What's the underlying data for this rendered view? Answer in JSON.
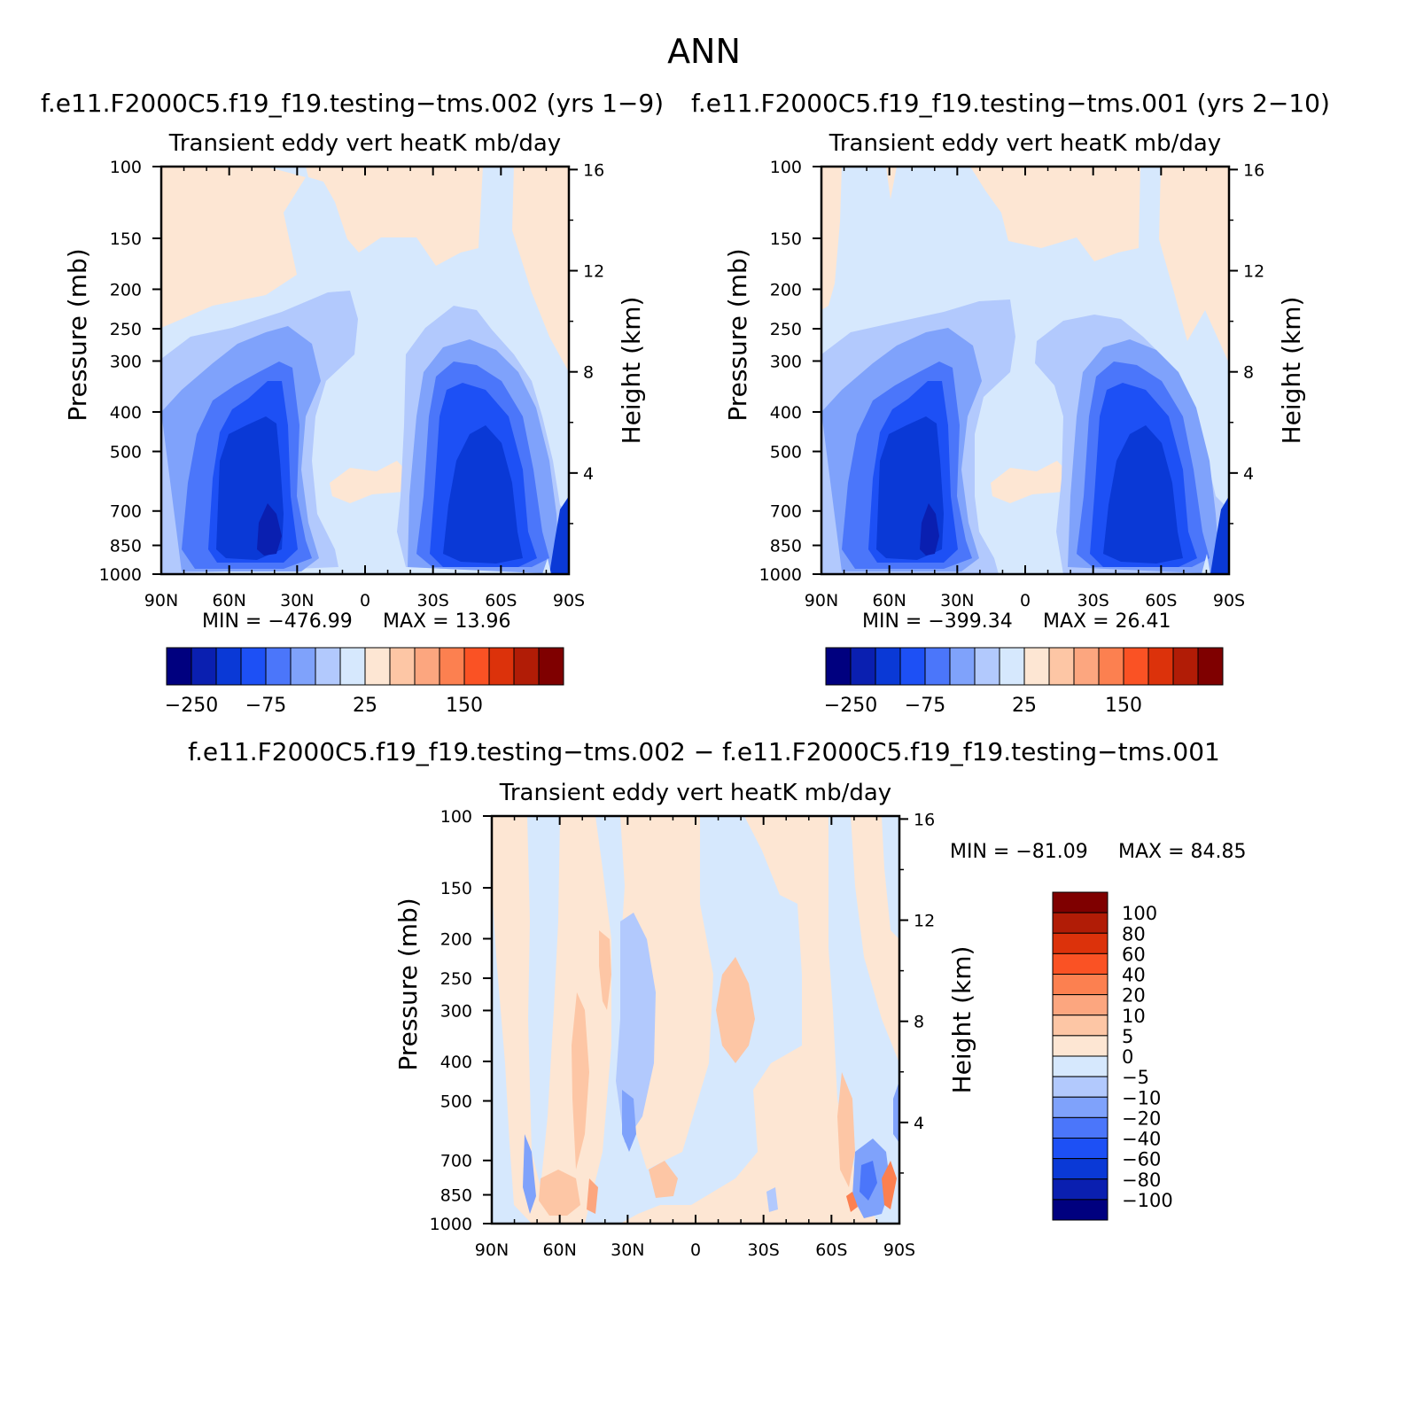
{
  "figure": {
    "title": "ANN"
  },
  "chart_data": [
    {
      "type": "heatmap",
      "panel": "test",
      "case_title": "f.e11.F2000C5.f19_f19.testing−tms.002 (yrs 1−9)",
      "title": "Transient eddy vert heatK mb/day",
      "ylabel": "Pressure (mb)",
      "y2label": "Height (km)",
      "x_ticks": [
        "90N",
        "60N",
        "30N",
        "0",
        "30S",
        "60S",
        "90S"
      ],
      "y_ticks": [
        "100",
        "150",
        "200",
        "250",
        "300",
        "400",
        "500",
        "700",
        "850",
        "1000"
      ],
      "y2_ticks": [
        "16",
        "12",
        "8",
        "4"
      ],
      "min_label": "MIN = −476.99",
      "max_label": "MAX =   13.96",
      "min": -476.99,
      "max": 13.96,
      "colorbar_labels": [
        "−250",
        "−75",
        "25",
        "150"
      ],
      "colorbar_colors": [
        "#00007f",
        "#0a1fb0",
        "#0a39d6",
        "#1d50f5",
        "#4b76fa",
        "#7fa2fb",
        "#b2c9fd",
        "#d6e8fd",
        "#fde6d3",
        "#fdc6a5",
        "#fca67f",
        "#fc8050",
        "#fa5224",
        "#dc320b",
        "#b11c06",
        "#7f0000"
      ]
    },
    {
      "type": "heatmap",
      "panel": "control",
      "case_title": "f.e11.F2000C5.f19_f19.testing−tms.001 (yrs 2−10)",
      "title": "Transient eddy vert heatK mb/day",
      "ylabel": "Pressure (mb)",
      "y2label": "Height (km)",
      "x_ticks": [
        "90N",
        "60N",
        "30N",
        "0",
        "30S",
        "60S",
        "90S"
      ],
      "y_ticks": [
        "100",
        "150",
        "200",
        "250",
        "300",
        "400",
        "500",
        "700",
        "850",
        "1000"
      ],
      "y2_ticks": [
        "16",
        "12",
        "8",
        "4"
      ],
      "min_label": "MIN = −399.34",
      "max_label": "MAX =   26.41",
      "min": -399.34,
      "max": 26.41,
      "colorbar_labels": [
        "−250",
        "−75",
        "25",
        "150"
      ],
      "colorbar_colors": [
        "#00007f",
        "#0a1fb0",
        "#0a39d6",
        "#1d50f5",
        "#4b76fa",
        "#7fa2fb",
        "#b2c9fd",
        "#d6e8fd",
        "#fde6d3",
        "#fdc6a5",
        "#fca67f",
        "#fc8050",
        "#fa5224",
        "#dc320b",
        "#b11c06",
        "#7f0000"
      ]
    },
    {
      "type": "heatmap",
      "panel": "difference",
      "case_title": "f.e11.F2000C5.f19_f19.testing−tms.002 − f.e11.F2000C5.f19_f19.testing−tms.001",
      "title": "Transient eddy vert heatK mb/day",
      "ylabel": "Pressure (mb)",
      "y2label": "Height (km)",
      "x_ticks": [
        "90N",
        "60N",
        "30N",
        "0",
        "30S",
        "60S",
        "90S"
      ],
      "y_ticks": [
        "100",
        "150",
        "200",
        "250",
        "300",
        "400",
        "500",
        "700",
        "850",
        "1000"
      ],
      "y2_ticks": [
        "16",
        "12",
        "8",
        "4"
      ],
      "min_label": "MIN = −81.09",
      "max_label": "MAX =   84.85",
      "min": -81.09,
      "max": 84.85,
      "colorbar_labels": [
        "100",
        "80",
        "60",
        "40",
        "20",
        "10",
        "5",
        "0",
        "−5",
        "−10",
        "−20",
        "−40",
        "−60",
        "−80",
        "−100"
      ],
      "colorbar_colors": [
        "#7f0000",
        "#b11c06",
        "#dc320b",
        "#fa5224",
        "#fc8050",
        "#fca67f",
        "#fdc6a5",
        "#fde6d3",
        "#d6e8fd",
        "#b2c9fd",
        "#7fa2fb",
        "#4b76fa",
        "#1d50f5",
        "#0a39d6",
        "#0a1fb0",
        "#00007f"
      ]
    }
  ]
}
